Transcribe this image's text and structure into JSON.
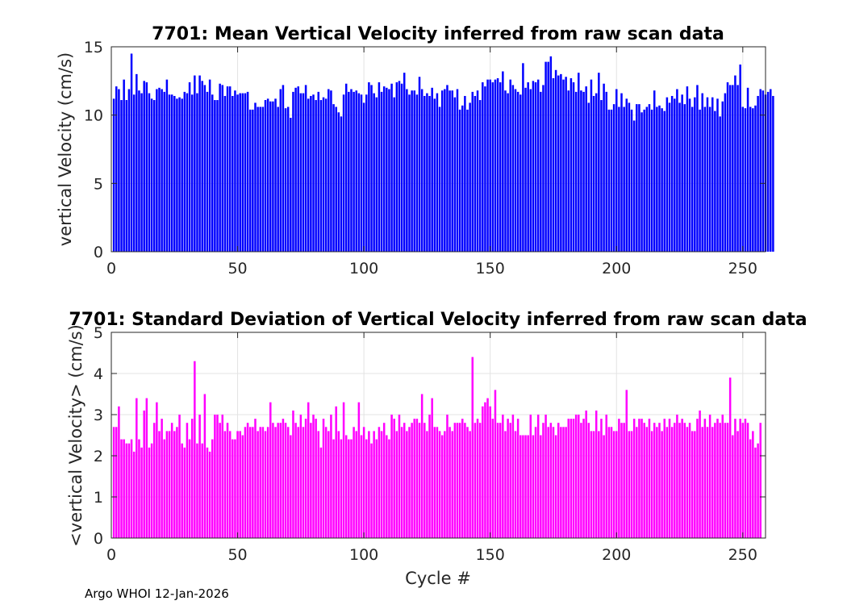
{
  "chart_data": [
    {
      "type": "bar",
      "title": "7701: Mean Vertical Velocity inferred from raw scan data",
      "xlabel": "",
      "ylabel": "vertical Velocity (cm/s)",
      "xlim": [
        0,
        259
      ],
      "ylim": [
        0,
        15
      ],
      "xticks": [
        0,
        50,
        100,
        150,
        200,
        250
      ],
      "yticks": [
        0,
        5,
        10,
        15
      ],
      "grid": true,
      "color": "#0000ff",
      "values": [
        11.2,
        12.1,
        11.9,
        11.1,
        12.6,
        11.1,
        11.9,
        14.5,
        11.5,
        13.0,
        11.8,
        11.6,
        12.5,
        12.4,
        11.6,
        11.2,
        11.1,
        11.9,
        12.0,
        11.9,
        11.7,
        12.6,
        11.5,
        11.5,
        11.4,
        11.2,
        11.3,
        11.2,
        11.7,
        11.6,
        12.4,
        11.5,
        12.9,
        11.6,
        12.9,
        12.5,
        12.2,
        11.7,
        12.6,
        11.5,
        11.1,
        11.1,
        12.3,
        12.2,
        11.4,
        12.1,
        12.1,
        11.4,
        11.8,
        11.5,
        11.6,
        11.6,
        11.6,
        11.7,
        10.4,
        10.4,
        10.9,
        10.6,
        10.6,
        10.6,
        11.1,
        11.2,
        11.0,
        11.0,
        11.2,
        10.6,
        11.9,
        12.2,
        10.5,
        10.6,
        9.8,
        11.7,
        12.0,
        12.1,
        11.6,
        11.6,
        12.2,
        11.2,
        11.4,
        11.5,
        11.1,
        11.7,
        11.1,
        11.3,
        11.2,
        11.9,
        11.8,
        10.8,
        10.6,
        10.2,
        9.9,
        11.5,
        12.3,
        11.7,
        11.9,
        11.7,
        11.8,
        11.6,
        11.5,
        10.9,
        11.5,
        12.4,
        12.2,
        11.6,
        11.3,
        12.4,
        11.7,
        12.1,
        12.0,
        11.9,
        12.3,
        11.3,
        12.4,
        12.5,
        12.3,
        13.1,
        11.9,
        11.5,
        11.8,
        11.8,
        11.5,
        12.8,
        11.9,
        11.4,
        11.6,
        11.4,
        12.0,
        11.2,
        11.6,
        10.6,
        11.8,
        11.9,
        12.2,
        11.8,
        11.8,
        11.3,
        11.9,
        10.4,
        10.7,
        11.4,
        10.4,
        10.9,
        11.7,
        11.4,
        11.8,
        11.1,
        12.4,
        12.1,
        12.6,
        12.6,
        12.4,
        12.6,
        12.7,
        12.4,
        13.2,
        11.8,
        11.6,
        12.6,
        12.2,
        11.9,
        11.7,
        11.5,
        13.8,
        12.0,
        12.4,
        11.9,
        12.5,
        12.4,
        12.6,
        11.7,
        12.2,
        13.9,
        13.9,
        14.3,
        12.7,
        13.3,
        12.9,
        13.0,
        12.6,
        12.8,
        11.8,
        12.7,
        12.4,
        11.7,
        13.1,
        11.8,
        11.7,
        12.1,
        10.9,
        12.6,
        11.4,
        11.6,
        13.1,
        11.1,
        12.3,
        11.7,
        10.4,
        10.4,
        10.8,
        11.9,
        10.6,
        11.6,
        10.6,
        11.2,
        10.9,
        10.4,
        9.6,
        10.8,
        10.8,
        10.2,
        10.4,
        10.6,
        10.8,
        10.4,
        11.8,
        10.6,
        10.7,
        10.5,
        10.3,
        11.3,
        10.9,
        11.4,
        11.2,
        11.9,
        10.9,
        11.5,
        10.8,
        12.1,
        11.2,
        10.6,
        11.3,
        12.2,
        10.4,
        11.6,
        10.6,
        11.3,
        10.6,
        11.3,
        10.3,
        11.2,
        9.9,
        11.0,
        11.6,
        12.4,
        12.2,
        12.2,
        12.9,
        12.2,
        13.7,
        10.6,
        10.5,
        12.0,
        10.6,
        10.5,
        10.7,
        11.4,
        11.9,
        11.8,
        11.5,
        11.7,
        11.9,
        11.4
      ]
    },
    {
      "type": "bar",
      "title": "7701: Standard Deviation of Vertical Velocity inferred from raw scan data",
      "xlabel": "Cycle #",
      "ylabel": "<vertical Velocity> (cm/s)",
      "xlim": [
        0,
        259
      ],
      "ylim": [
        0,
        5
      ],
      "xticks": [
        0,
        50,
        100,
        150,
        200,
        250
      ],
      "yticks": [
        0,
        1,
        2,
        3,
        4,
        5
      ],
      "grid": true,
      "color": "#ff00ff",
      "values": [
        2.7,
        2.7,
        3.2,
        2.4,
        2.4,
        2.3,
        2.3,
        2.4,
        2.1,
        3.4,
        2.4,
        2.2,
        3.1,
        3.4,
        2.2,
        2.3,
        2.8,
        3.3,
        2.6,
        2.9,
        2.4,
        2.6,
        2.6,
        2.8,
        2.6,
        2.7,
        3.0,
        2.3,
        2.2,
        2.8,
        2.4,
        2.9,
        4.3,
        2.3,
        3.0,
        2.3,
        3.5,
        2.2,
        2.1,
        2.4,
        3.0,
        3.0,
        2.8,
        3.0,
        2.6,
        2.8,
        2.6,
        2.4,
        2.4,
        2.6,
        2.6,
        2.5,
        2.7,
        2.8,
        2.7,
        2.7,
        2.9,
        2.6,
        2.7,
        2.7,
        2.6,
        2.7,
        3.3,
        2.8,
        2.7,
        2.8,
        2.8,
        2.9,
        2.8,
        2.7,
        2.5,
        3.1,
        2.8,
        2.7,
        3.0,
        2.7,
        2.9,
        3.3,
        2.8,
        3.0,
        2.9,
        2.6,
        2.2,
        2.9,
        2.7,
        2.6,
        3.0,
        2.4,
        3.2,
        2.6,
        2.4,
        3.3,
        2.5,
        2.4,
        2.4,
        2.7,
        2.6,
        3.3,
        2.5,
        2.7,
        2.4,
        2.6,
        2.3,
        2.6,
        2.4,
        2.7,
        2.6,
        2.8,
        2.5,
        2.4,
        3.0,
        2.9,
        2.6,
        3.0,
        2.7,
        2.8,
        2.6,
        2.7,
        2.8,
        2.9,
        2.9,
        2.8,
        3.5,
        2.8,
        2.6,
        3.0,
        3.4,
        2.7,
        2.7,
        2.6,
        2.5,
        2.6,
        3.0,
        2.7,
        2.6,
        2.8,
        2.8,
        2.8,
        2.9,
        2.8,
        2.7,
        2.6,
        4.4,
        2.8,
        2.9,
        2.8,
        3.2,
        3.3,
        3.4,
        3.2,
        2.9,
        3.6,
        2.8,
        2.8,
        3.0,
        2.6,
        2.9,
        2.8,
        3.0,
        2.6,
        2.9,
        2.5,
        2.5,
        2.5,
        2.5,
        3.0,
        2.5,
        2.7,
        3.0,
        2.5,
        2.8,
        3.0,
        2.7,
        2.8,
        2.7,
        2.5,
        2.8,
        2.7,
        2.7,
        2.7,
        2.9,
        2.9,
        2.9,
        3.0,
        3.0,
        2.8,
        2.9,
        3.1,
        2.8,
        2.6,
        2.6,
        3.1,
        2.6,
        2.9,
        2.5,
        3.0,
        2.7,
        2.7,
        2.6,
        2.6,
        2.9,
        2.8,
        2.8,
        3.6,
        2.6,
        2.6,
        2.9,
        2.7,
        2.9,
        2.9,
        2.8,
        2.7,
        2.9,
        2.6,
        2.8,
        2.7,
        2.8,
        2.6,
        2.9,
        2.7,
        2.9,
        2.7,
        2.8,
        3.0,
        2.8,
        2.9,
        2.8,
        2.7,
        2.8,
        2.6,
        2.6,
        2.9,
        3.1,
        2.7,
        2.9,
        2.7,
        3.0,
        2.7,
        2.8,
        2.9,
        2.8,
        3.0,
        2.8,
        2.8,
        3.9,
        2.5,
        2.9,
        2.6,
        2.9,
        2.8,
        2.9,
        2.8,
        2.4,
        2.6,
        2.2,
        2.3,
        2.8
      ]
    }
  ],
  "footer": "Argo WHOI 12-Jan-2026"
}
